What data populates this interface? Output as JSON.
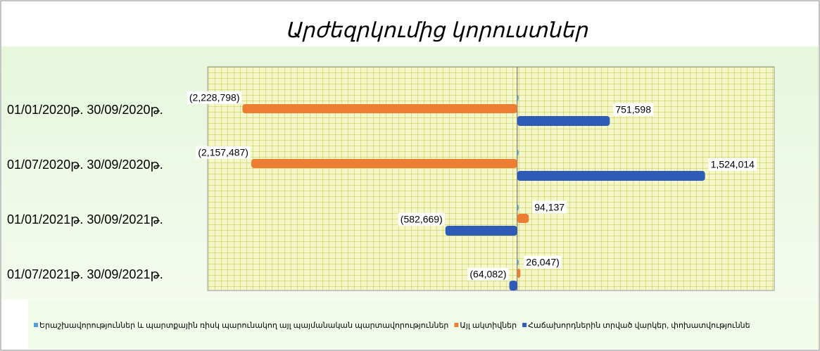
{
  "chart_data": {
    "type": "hbar",
    "title": "Արժեզրկումից կորուստներ",
    "categories": [
      "01/01/2020թ. 30/09/2020թ.",
      "01/07/2020թ. 30/09/2020թ.",
      "01/01/2021թ. 30/09/2021թ.",
      "01/07/2021թ. 30/09/2021թ."
    ],
    "series": [
      {
        "name": "Երաշխավորություններ և պարտքային ռիսկ պարունակող այլ պայմանական պարտավորություններ",
        "color": "#4f9fd8",
        "values": [
          0,
          0,
          0,
          0
        ]
      },
      {
        "name": "Այլ ակտիվներ",
        "color": "#ed7d31",
        "values": [
          -2228798,
          -2157487,
          94137,
          26047
        ],
        "value_labels": [
          "(2,228,798)",
          "(2,157,487)",
          "94,137",
          "26,047)"
        ]
      },
      {
        "name": "Հաճախորդներին տրված վարկեր, փոխատվություննե",
        "color": "#2e5bb8",
        "values": [
          751598,
          1524014,
          -582669,
          -64082
        ],
        "value_labels": [
          "751,598",
          "1,524,014",
          "(582,669)",
          "(64,082)"
        ]
      }
    ],
    "xlim": [
      -2500000,
      2000000
    ]
  }
}
